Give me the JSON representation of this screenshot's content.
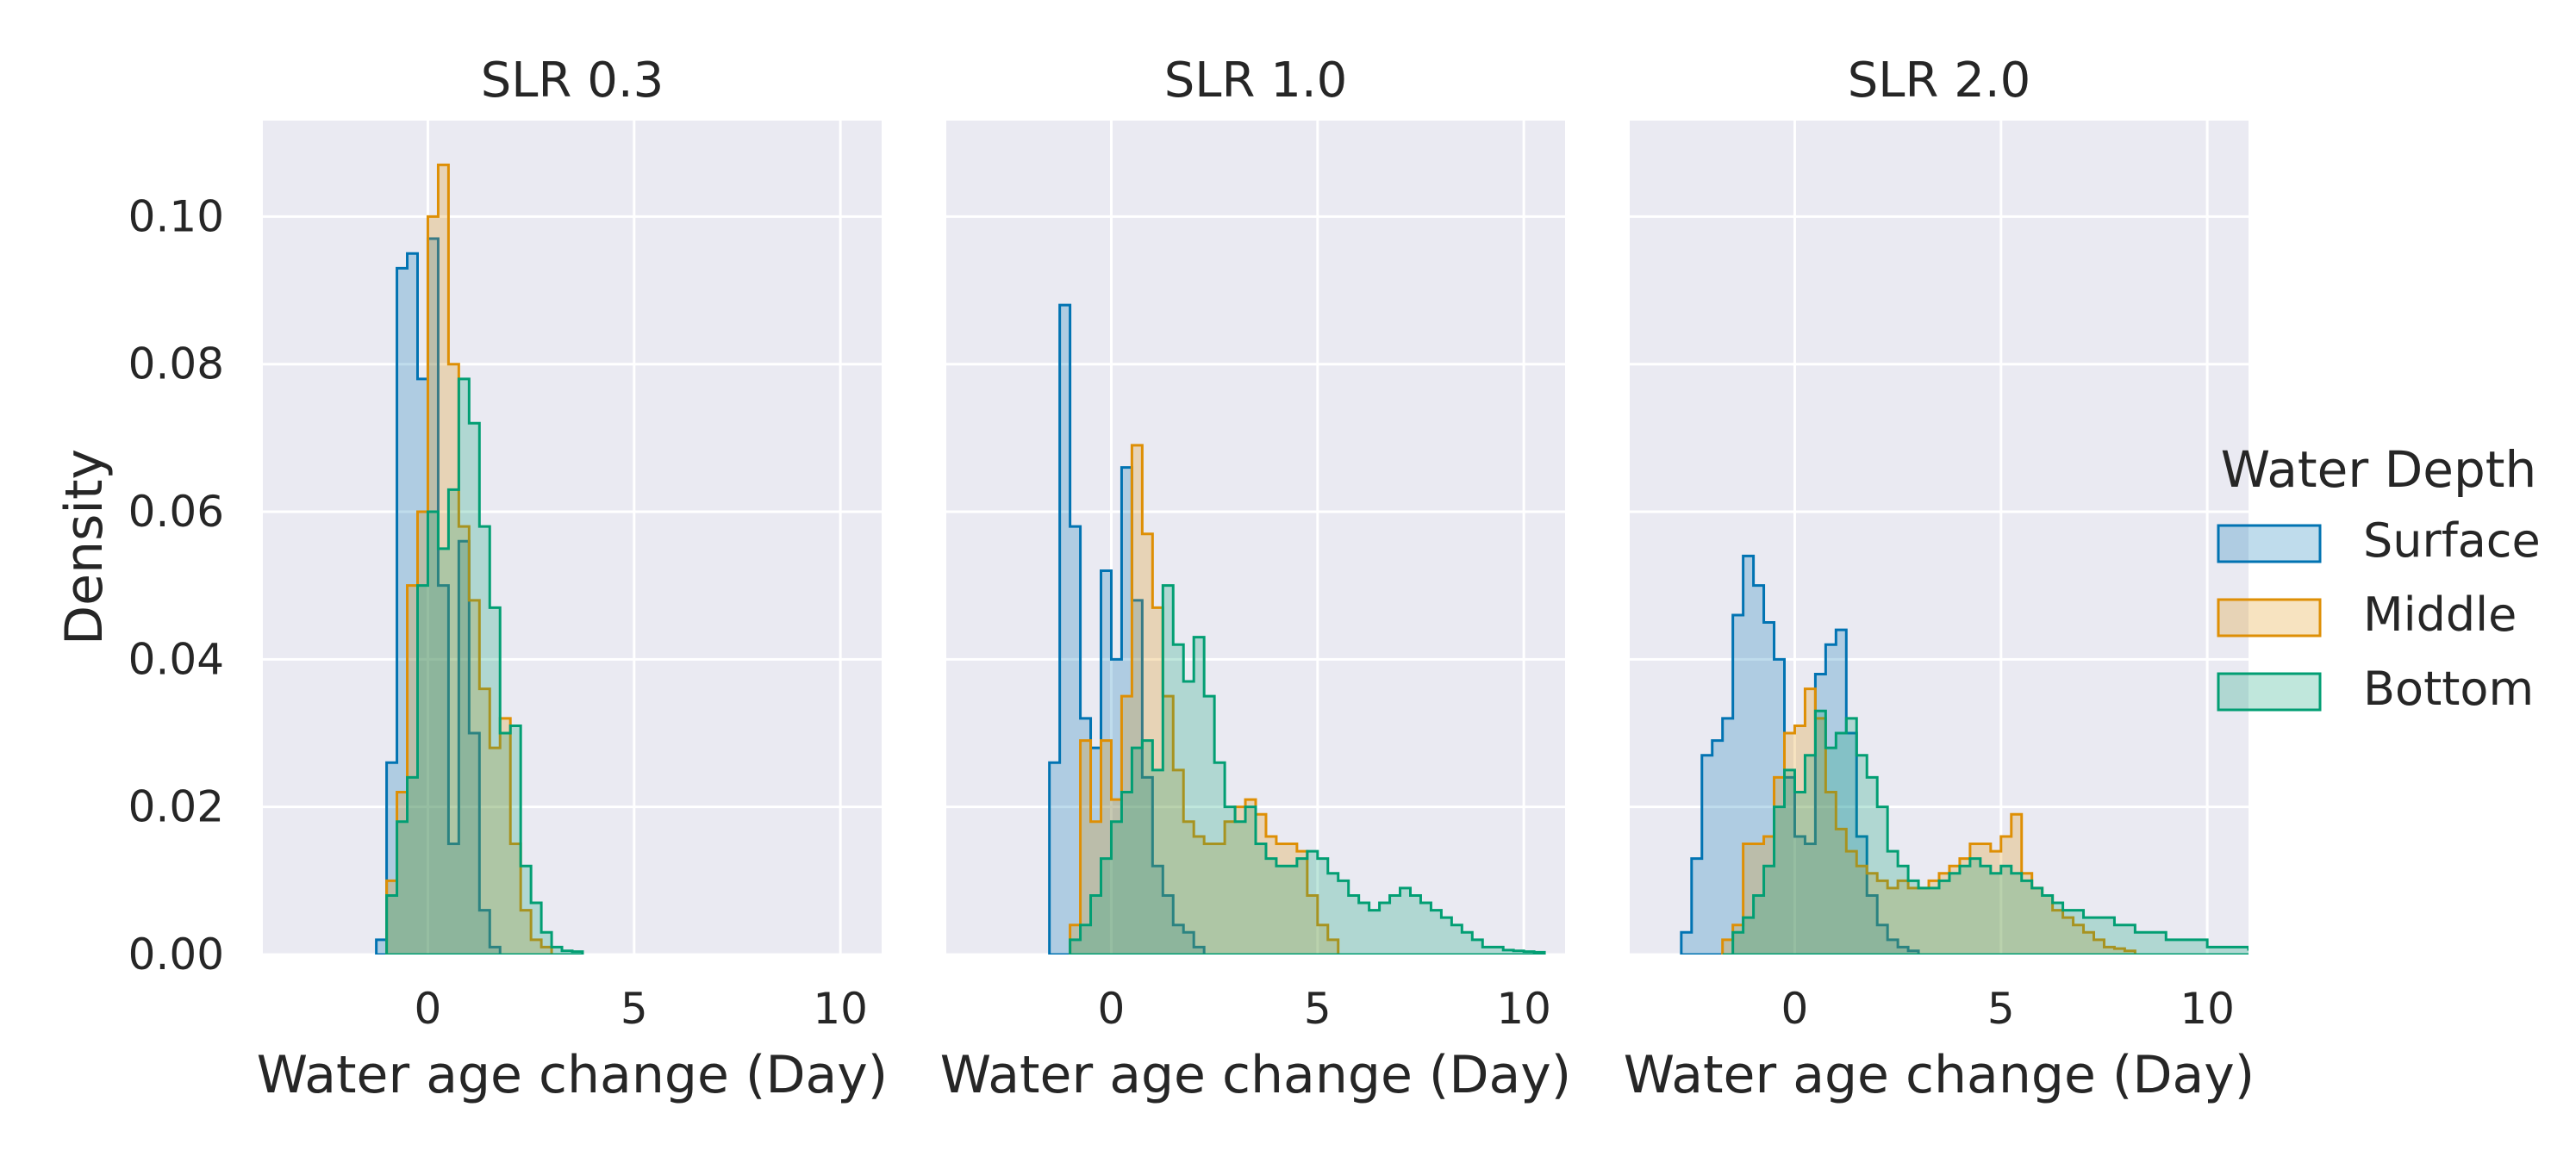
{
  "chart_data": {
    "type": "histogram",
    "stat": "Density",
    "element": "step",
    "shared_y": true,
    "xlabel": "Water age change (Day)",
    "ylabel": "Density",
    "xlim": [
      -4,
      11
    ],
    "ylim": [
      0,
      0.113
    ],
    "xticks": [
      0,
      5,
      10
    ],
    "yticks": [
      0.0,
      0.02,
      0.04,
      0.06,
      0.08,
      0.1
    ],
    "ytick_labels": [
      "0.00",
      "0.02",
      "0.04",
      "0.06",
      "0.08",
      "0.10"
    ],
    "bin_width": 0.25,
    "grid": true,
    "background": "#eaeaf2",
    "legend": {
      "title": "Water Depth",
      "placement": "outside-right",
      "entries": [
        {
          "label": "Surface",
          "color": "#0173b2"
        },
        {
          "label": "Middle",
          "color": "#de8f05"
        },
        {
          "label": "Bottom",
          "color": "#029e73"
        }
      ]
    },
    "panels": [
      {
        "title": "SLR 0.3",
        "series": [
          {
            "name": "Surface",
            "color": "#0173b2",
            "bin_start": -1.25,
            "values": [
              0.002,
              0.026,
              0.093,
              0.095,
              0.078,
              0.097,
              0.05,
              0.015,
              0.056,
              0.03,
              0.006,
              0.001,
              0.0
            ]
          },
          {
            "name": "Middle",
            "color": "#de8f05",
            "bin_start": -1.0,
            "values": [
              0.01,
              0.022,
              0.05,
              0.06,
              0.1,
              0.107,
              0.08,
              0.058,
              0.048,
              0.036,
              0.028,
              0.032,
              0.015,
              0.006,
              0.002,
              0.001,
              0.0
            ]
          },
          {
            "name": "Bottom",
            "color": "#029e73",
            "bin_start": -1.0,
            "values": [
              0.008,
              0.018,
              0.024,
              0.05,
              0.06,
              0.055,
              0.063,
              0.078,
              0.072,
              0.058,
              0.047,
              0.03,
              0.031,
              0.012,
              0.007,
              0.003,
              0.001,
              0.0005,
              0.0004
            ]
          }
        ]
      },
      {
        "title": "SLR 1.0",
        "series": [
          {
            "name": "Surface",
            "color": "#0173b2",
            "bin_start": -1.5,
            "values": [
              0.026,
              0.088,
              0.058,
              0.032,
              0.028,
              0.052,
              0.04,
              0.066,
              0.048,
              0.024,
              0.012,
              0.008,
              0.004,
              0.003,
              0.001
            ]
          },
          {
            "name": "Middle",
            "color": "#de8f05",
            "bin_start": -1.0,
            "values": [
              0.004,
              0.029,
              0.018,
              0.029,
              0.021,
              0.035,
              0.069,
              0.057,
              0.047,
              0.035,
              0.025,
              0.018,
              0.016,
              0.015,
              0.015,
              0.018,
              0.02,
              0.021,
              0.019,
              0.016,
              0.015,
              0.015,
              0.014,
              0.008,
              0.004,
              0.002
            ]
          },
          {
            "name": "Bottom",
            "color": "#029e73",
            "bin_start": -1.0,
            "values": [
              0.002,
              0.004,
              0.008,
              0.013,
              0.018,
              0.022,
              0.028,
              0.029,
              0.025,
              0.05,
              0.042,
              0.037,
              0.043,
              0.035,
              0.026,
              0.02,
              0.018,
              0.02,
              0.015,
              0.013,
              0.012,
              0.012,
              0.013,
              0.014,
              0.013,
              0.011,
              0.01,
              0.008,
              0.007,
              0.006,
              0.007,
              0.008,
              0.009,
              0.008,
              0.007,
              0.006,
              0.005,
              0.004,
              0.003,
              0.002,
              0.001,
              0.001,
              0.0006,
              0.0005,
              0.0004,
              0.0003
            ]
          }
        ]
      },
      {
        "title": "SLR 2.0",
        "series": [
          {
            "name": "Surface",
            "color": "#0173b2",
            "bin_start": -2.75,
            "values": [
              0.003,
              0.013,
              0.027,
              0.029,
              0.032,
              0.046,
              0.054,
              0.05,
              0.045,
              0.04,
              0.024,
              0.016,
              0.015,
              0.038,
              0.042,
              0.044,
              0.03,
              0.016,
              0.008,
              0.004,
              0.002,
              0.001,
              0.0005
            ]
          },
          {
            "name": "Middle",
            "color": "#de8f05",
            "bin_start": -1.75,
            "values": [
              0.002,
              0.004,
              0.015,
              0.015,
              0.016,
              0.024,
              0.03,
              0.031,
              0.036,
              0.032,
              0.022,
              0.017,
              0.014,
              0.012,
              0.011,
              0.01,
              0.009,
              0.01,
              0.009,
              0.009,
              0.01,
              0.011,
              0.012,
              0.013,
              0.015,
              0.015,
              0.014,
              0.016,
              0.019,
              0.011,
              0.009,
              0.008,
              0.006,
              0.005,
              0.004,
              0.003,
              0.002,
              0.001,
              0.0008,
              0.0005
            ]
          },
          {
            "name": "Bottom",
            "color": "#029e73",
            "bin_start": -1.75,
            "values": [
              0.0,
              0.003,
              0.005,
              0.008,
              0.012,
              0.02,
              0.025,
              0.022,
              0.027,
              0.033,
              0.028,
              0.03,
              0.032,
              0.027,
              0.024,
              0.02,
              0.014,
              0.012,
              0.01,
              0.009,
              0.009,
              0.01,
              0.011,
              0.012,
              0.013,
              0.012,
              0.011,
              0.012,
              0.011,
              0.01,
              0.009,
              0.008,
              0.007,
              0.006,
              0.006,
              0.005,
              0.005,
              0.005,
              0.004,
              0.004,
              0.003,
              0.003,
              0.003,
              0.002,
              0.002,
              0.002,
              0.002,
              0.001,
              0.001,
              0.001,
              0.001,
              0.0007,
              0.0006,
              0.0005,
              0.0005
            ]
          }
        ]
      }
    ]
  }
}
